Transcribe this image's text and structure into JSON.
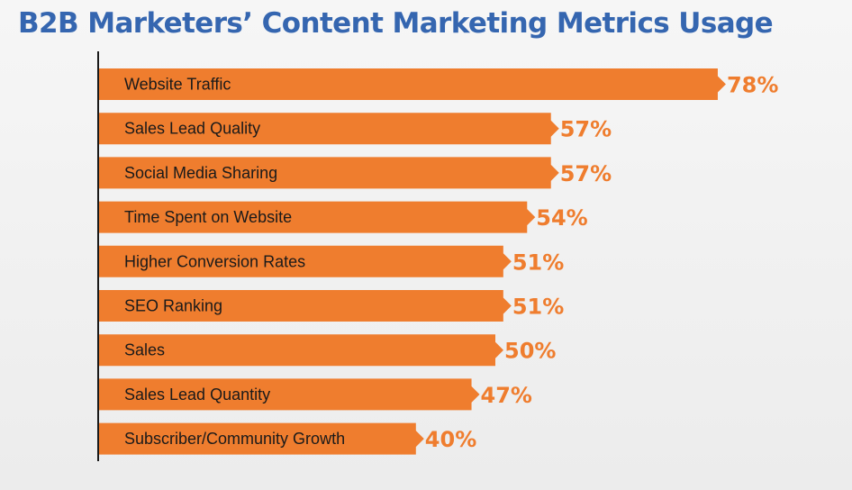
{
  "chart_data": {
    "type": "bar",
    "orientation": "horizontal",
    "title": "B2B Marketers’ Content Marketing Metrics Usage",
    "categories": [
      "Website Traffic",
      "Sales Lead Quality",
      "Social Media Sharing",
      "Time Spent on Website",
      "Higher Conversion Rates",
      "SEO Ranking",
      "Sales",
      "Sales Lead Quantity",
      "Subscriber/Community Growth"
    ],
    "values": [
      78,
      57,
      57,
      54,
      51,
      51,
      50,
      47,
      40
    ],
    "value_labels": [
      "78%",
      "57%",
      "57%",
      "54%",
      "51%",
      "51%",
      "50%",
      "47%",
      "40%"
    ],
    "xlim": [
      0,
      100
    ],
    "xlabel": "",
    "ylabel": "",
    "grid": false,
    "legend": "none"
  },
  "colors": {
    "bar": "#ef7d2e",
    "value_text": "#ef7d2e",
    "title": "#3566b0",
    "axis": "#1a1a1a"
  }
}
